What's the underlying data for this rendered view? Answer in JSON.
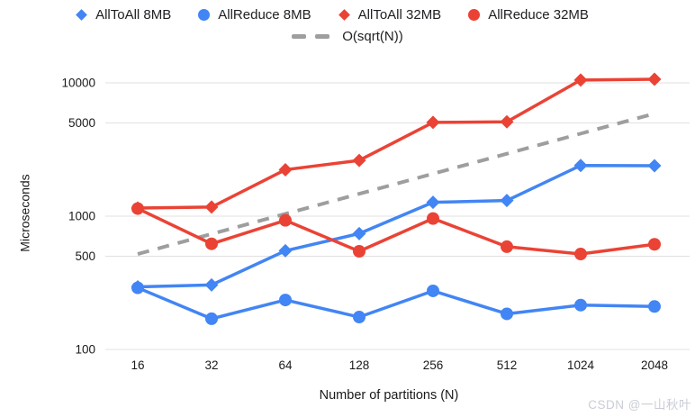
{
  "legend": {
    "items": [
      {
        "label": "AllToAll 8MB",
        "marker": "diamond",
        "color": "#4285F4"
      },
      {
        "label": "AllReduce 8MB",
        "marker": "circle",
        "color": "#4285F4"
      },
      {
        "label": "AllToAll 32MB",
        "marker": "diamond",
        "color": "#EA4335"
      },
      {
        "label": "AllReduce 32MB",
        "marker": "circle",
        "color": "#EA4335"
      },
      {
        "label": "O(sqrt(N))",
        "marker": "dash",
        "color": "#9E9E9E"
      }
    ]
  },
  "watermark": "CSDN @一山秋叶",
  "colors": {
    "series_blue": "#4285F4",
    "series_red": "#EA4335",
    "trendline_gray": "#9E9E9E",
    "gridline": "#e1e1e1",
    "tick_text": "#1a1a1a",
    "watermark_gray": "#c9cdd6"
  },
  "chart_data": {
    "type": "line",
    "xlabel": "Number of partitions (N)",
    "ylabel": "Microseconds",
    "x_scale": "log2-categorical",
    "y_scale": "log10",
    "grid": true,
    "legend_position": "top",
    "categories": [
      16,
      32,
      64,
      128,
      256,
      512,
      1024,
      2048
    ],
    "y_ticks": [
      100,
      500,
      1000,
      5000,
      10000
    ],
    "ylim": [
      100,
      13000
    ],
    "series": [
      {
        "name": "AllToAll 8MB",
        "marker": "diamond",
        "color": "#4285F4",
        "values": [
          295,
          305,
          550,
          740,
          1270,
          1310,
          2400,
          2390
        ]
      },
      {
        "name": "AllReduce 8MB",
        "marker": "circle",
        "color": "#4285F4",
        "values": [
          290,
          170,
          235,
          175,
          275,
          185,
          215,
          210
        ]
      },
      {
        "name": "AllToAll 32MB",
        "marker": "diamond",
        "color": "#EA4335",
        "values": [
          1150,
          1170,
          2230,
          2620,
          5050,
          5100,
          10500,
          10650
        ]
      },
      {
        "name": "AllReduce 32MB",
        "marker": "circle",
        "color": "#EA4335",
        "values": [
          1140,
          620,
          930,
          545,
          960,
          590,
          520,
          615
        ]
      }
    ],
    "trendline": {
      "name": "O(sqrt(N))",
      "style": "dashed",
      "color": "#9E9E9E",
      "values": [
        520,
        735,
        1040,
        1470,
        2080,
        2940,
        4160,
        5880
      ]
    }
  }
}
